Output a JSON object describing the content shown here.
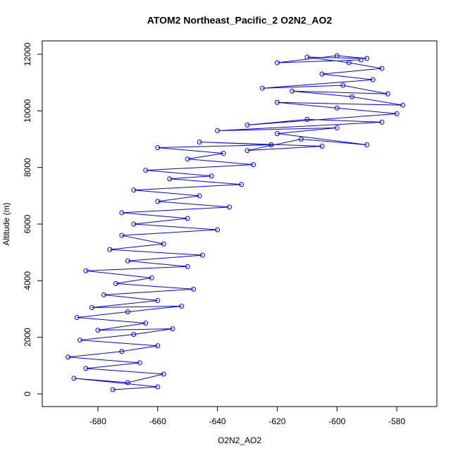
{
  "chart_data": {
    "type": "line",
    "title": "ATOM2 Northeast_Pacific_2 O2N2_AO2",
    "x_label": "O2N2_AO2",
    "y_label": "Altitude (m)",
    "marker": "circle",
    "x": [
      -675,
      -660,
      -688,
      -670,
      -658,
      -684,
      -666,
      -690,
      -672,
      -660,
      -686,
      -668,
      -655,
      -680,
      -664,
      -687,
      -670,
      -652,
      -682,
      -660,
      -678,
      -648,
      -674,
      -662,
      -684,
      -650,
      -670,
      -645,
      -676,
      -658,
      -672,
      -640,
      -668,
      -650,
      -672,
      -636,
      -660,
      -646,
      -668,
      -632,
      -656,
      -642,
      -664,
      -628,
      -650,
      -638,
      -660,
      -622,
      -646,
      -605,
      -630,
      -612,
      -590,
      -620,
      -600,
      -640,
      -585,
      -610,
      -630,
      -580,
      -600,
      -620,
      -578,
      -595,
      -615,
      -583,
      -598,
      -625,
      -588,
      -605,
      -585,
      -596,
      -610,
      -590,
      -600,
      -620,
      -592
    ],
    "series": [
      {
        "color": "#0000ff",
        "values": [
          150,
          250,
          550,
          400,
          700,
          900,
          1100,
          1300,
          1500,
          1700,
          1900,
          2100,
          2300,
          2250,
          2500,
          2700,
          2900,
          3100,
          3050,
          3300,
          3500,
          3700,
          3900,
          4100,
          4350,
          4500,
          4700,
          4900,
          5100,
          5300,
          5600,
          5800,
          6000,
          6200,
          6400,
          6600,
          6800,
          7000,
          7200,
          7400,
          7600,
          7700,
          7900,
          8100,
          8300,
          8500,
          8700,
          8800,
          8900,
          8750,
          8600,
          9000,
          8800,
          9200,
          9400,
          9300,
          9600,
          9700,
          9500,
          9900,
          10100,
          10300,
          10200,
          10500,
          10700,
          10600,
          10900,
          10800,
          11100,
          11300,
          11500,
          11700,
          11900,
          11850,
          11950,
          11700,
          11800
        ]
      }
    ],
    "xlim": [
      -698.6,
      -566.6
    ],
    "ylim": [
      -448,
      12473
    ],
    "xticks": [
      -680,
      -660,
      -640,
      -620,
      -600,
      -580
    ],
    "yticks": [
      0,
      2000,
      4000,
      6000,
      8000,
      10000,
      12000
    ]
  }
}
